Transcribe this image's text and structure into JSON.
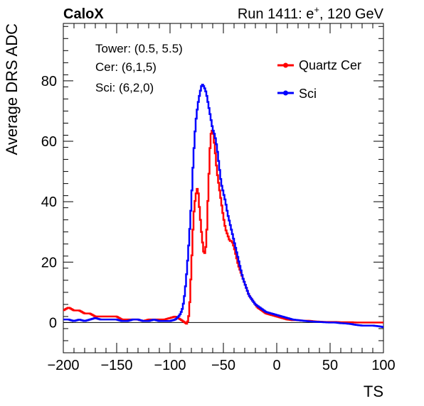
{
  "header": {
    "experiment": "CaloX",
    "run_label": "Run 1411: e",
    "run_superscript": "+",
    "run_suffix": ", 120 GeV"
  },
  "info_lines": [
    "Tower: (0.5, 5.5)",
    "Cer: (6,1,5)",
    "Sci: (6,2,0)"
  ],
  "chart_data": {
    "type": "line",
    "xlabel": "TS",
    "ylabel": "Average DRS ADC",
    "xlim": [
      -200,
      100
    ],
    "ylim": [
      -10,
      99
    ],
    "xticks": [
      -200,
      -150,
      -100,
      -50,
      0,
      50,
      100
    ],
    "yticks": [
      0,
      20,
      40,
      60,
      80
    ],
    "xtick_labels": [
      "−200",
      "−150",
      "−100",
      "−50",
      "0",
      "50",
      "100"
    ],
    "ytick_labels": [
      "0",
      "20",
      "40",
      "60",
      "80"
    ],
    "grid": false,
    "legend_position": "top-right",
    "zero_line": true,
    "series": [
      {
        "name": "Quartz Cer",
        "color": "#ff0000",
        "x": [
          -200,
          -195,
          -190,
          -185,
          -180,
          -175,
          -170,
          -165,
          -160,
          -155,
          -150,
          -145,
          -140,
          -135,
          -130,
          -125,
          -120,
          -115,
          -110,
          -105,
          -100,
          -95,
          -90,
          -86,
          -84,
          -82,
          -80,
          -78,
          -76,
          -74,
          -72,
          -70,
          -68,
          -66,
          -64,
          -62,
          -60,
          -58,
          -56,
          -54,
          -52,
          -50,
          -48,
          -46,
          -44,
          -42,
          -40,
          -38,
          -36,
          -34,
          -32,
          -30,
          -28,
          -26,
          -24,
          -22,
          -20,
          -18,
          -16,
          -14,
          -12,
          -10,
          -5,
          0,
          5,
          10,
          15,
          20,
          25,
          30,
          35,
          40,
          45,
          50,
          55,
          60,
          65,
          70,
          75,
          80,
          85,
          90,
          95,
          100
        ],
        "y": [
          4,
          5,
          4,
          4,
          3,
          3,
          2,
          2,
          2,
          2,
          2,
          1,
          1,
          1,
          1,
          0.5,
          1,
          1,
          1,
          1,
          1.5,
          2,
          1,
          0,
          -0.5,
          3,
          18,
          35,
          42,
          45,
          36,
          28,
          22,
          26,
          45,
          62,
          64,
          58,
          50,
          45,
          40,
          35,
          31,
          29,
          27,
          27,
          25,
          22,
          19,
          17,
          15,
          13,
          11,
          9,
          8,
          7,
          6,
          5,
          4.5,
          4,
          3.5,
          3,
          2.5,
          2,
          1.5,
          1,
          0.8,
          0.8,
          0.6,
          0.6,
          0.4,
          0.3,
          0.2,
          0.2,
          0.2,
          0.1,
          0.1,
          0.1,
          0,
          0,
          0,
          0,
          0,
          0
        ]
      },
      {
        "name": "Sci",
        "color": "#0000ff",
        "x": [
          -200,
          -195,
          -190,
          -185,
          -180,
          -175,
          -170,
          -165,
          -160,
          -155,
          -150,
          -145,
          -140,
          -135,
          -130,
          -125,
          -120,
          -115,
          -110,
          -105,
          -100,
          -95,
          -92,
          -90,
          -88,
          -86,
          -84,
          -82,
          -80,
          -78,
          -76,
          -74,
          -72,
          -70,
          -68,
          -66,
          -64,
          -62,
          -60,
          -58,
          -56,
          -54,
          -52,
          -50,
          -48,
          -46,
          -44,
          -42,
          -40,
          -38,
          -36,
          -34,
          -32,
          -30,
          -28,
          -26,
          -24,
          -22,
          -20,
          -18,
          -16,
          -14,
          -12,
          -10,
          -5,
          0,
          5,
          10,
          15,
          20,
          25,
          30,
          35,
          40,
          45,
          50,
          55,
          60,
          65,
          70,
          75,
          80,
          85,
          90,
          95,
          100
        ],
        "y": [
          1,
          1,
          0.5,
          1,
          0.5,
          1,
          1.5,
          1,
          1,
          1,
          1,
          0.5,
          0.5,
          1,
          1,
          0.5,
          0.5,
          1,
          0.5,
          0.5,
          0.5,
          1,
          2,
          3,
          5,
          10,
          18,
          28,
          40,
          55,
          66,
          72,
          76,
          79,
          78,
          76,
          72,
          68,
          64,
          62,
          58,
          52,
          46,
          43,
          40,
          36,
          33,
          30,
          27,
          24,
          21,
          18,
          15,
          13,
          11,
          9,
          8,
          7,
          6,
          5.5,
          5,
          4.5,
          4,
          3.5,
          3,
          2.5,
          2,
          1.5,
          1,
          0.8,
          0.6,
          0.4,
          0.3,
          0.2,
          0.1,
          0,
          0,
          -0.2,
          -0.3,
          -0.5,
          -0.8,
          -1,
          -1,
          -1,
          -1.2,
          -1.5
        ]
      }
    ]
  }
}
